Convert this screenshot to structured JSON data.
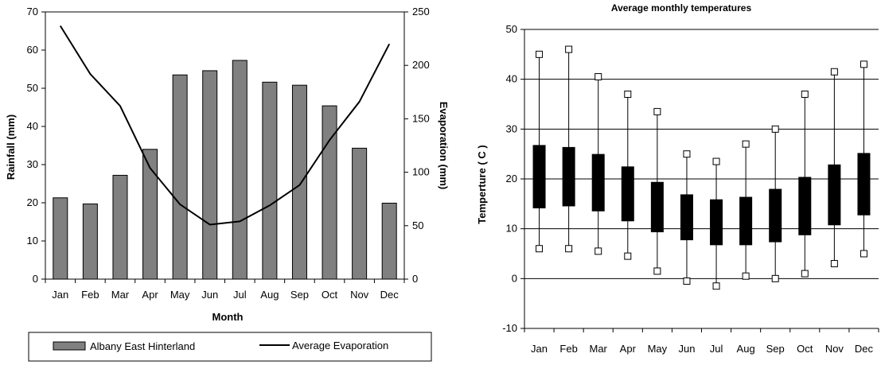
{
  "chart_data": [
    {
      "type": "bar+line",
      "title": "",
      "xlabel": "Month",
      "ylabel": "Rainfall (mm)",
      "y2label": "Evaporation (mm)",
      "categories": [
        "Jan",
        "Feb",
        "Mar",
        "Apr",
        "May",
        "Jun",
        "Jul",
        "Aug",
        "Sep",
        "Oct",
        "Nov",
        "Dec"
      ],
      "ylim": [
        0,
        70
      ],
      "yticks": [
        0,
        10,
        20,
        30,
        40,
        50,
        60,
        70
      ],
      "y2lim": [
        0,
        250
      ],
      "y2ticks": [
        0,
        50,
        100,
        150,
        200,
        250
      ],
      "series": [
        {
          "name": "Albany East Hinterland",
          "type": "bar",
          "axis": "left",
          "color": "#808080",
          "values": [
            21.3,
            19.7,
            27.2,
            34.0,
            53.5,
            54.6,
            57.3,
            51.6,
            50.8,
            45.4,
            34.3,
            19.9
          ]
        },
        {
          "name": "Average Evaporation",
          "type": "line",
          "axis": "right",
          "color": "#000000",
          "values": [
            237,
            192,
            162,
            104,
            70,
            51,
            54,
            69,
            88,
            130,
            166,
            220
          ]
        }
      ],
      "legend": "bottom",
      "grid": false
    },
    {
      "type": "boxplot",
      "title": "Average monthly  temperatures",
      "xlabel": "",
      "ylabel": "Temperture ( C )",
      "categories": [
        "Jan",
        "Feb",
        "Mar",
        "Apr",
        "May",
        "Jun",
        "Jul",
        "Aug",
        "Sep",
        "Oct",
        "Nov",
        "Dec"
      ],
      "ylim": [
        -10,
        50
      ],
      "yticks": [
        -10,
        0,
        10,
        20,
        30,
        40,
        50
      ],
      "grid": true,
      "series": [
        {
          "name": "max",
          "values": [
            45,
            46,
            40.5,
            37,
            33.5,
            25,
            23.5,
            27,
            30,
            37,
            41.5,
            43
          ]
        },
        {
          "name": "box_high",
          "values": [
            26.8,
            26.4,
            25.0,
            22.5,
            19.4,
            16.9,
            15.9,
            16.4,
            18.0,
            20.4,
            22.9,
            25.2
          ]
        },
        {
          "name": "box_low",
          "values": [
            14.1,
            14.5,
            13.5,
            11.5,
            9.3,
            7.7,
            6.7,
            6.7,
            7.3,
            8.7,
            10.7,
            12.7
          ]
        },
        {
          "name": "min",
          "values": [
            6,
            6,
            5.5,
            4.5,
            1.5,
            -0.5,
            -1.5,
            0.5,
            0,
            1,
            3,
            5
          ]
        }
      ]
    }
  ]
}
